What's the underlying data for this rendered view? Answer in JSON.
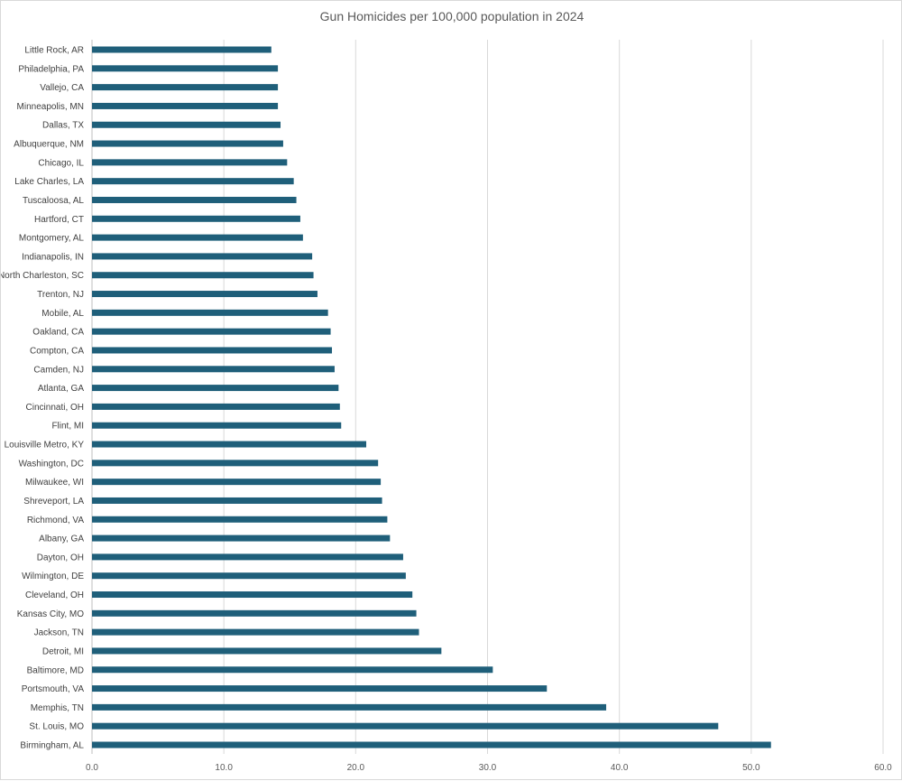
{
  "chart_data": {
    "type": "bar",
    "orientation": "horizontal",
    "title": "Gun Homicides per 100,000 population in 2024",
    "xlabel": "",
    "ylabel": "",
    "xlim": [
      0,
      60
    ],
    "xticks": [
      "0.0",
      "10.0",
      "20.0",
      "30.0",
      "40.0",
      "50.0",
      "60.0"
    ],
    "grid": true,
    "bar_color": "#1f5f7a",
    "categories": [
      "Little Rock, AR",
      "Philadelphia, PA",
      "Vallejo, CA",
      "Minneapolis, MN",
      "Dallas, TX",
      "Albuquerque, NM",
      "Chicago, IL",
      "Lake Charles, LA",
      "Tuscaloosa, AL",
      "Hartford, CT",
      "Montgomery, AL",
      "Indianapolis, IN",
      "North Charleston, SC",
      "Trenton, NJ",
      "Mobile, AL",
      "Oakland, CA",
      "Compton, CA",
      "Camden, NJ",
      "Atlanta, GA",
      "Cincinnati, OH",
      "Flint, MI",
      "Louisville Metro, KY",
      "Washington, DC",
      "Milwaukee, WI",
      "Shreveport, LA",
      "Richmond, VA",
      "Albany, GA",
      "Dayton, OH",
      "Wilmington, DE",
      "Cleveland, OH",
      "Kansas City, MO",
      "Jackson, TN",
      "Detroit, MI",
      "Baltimore, MD",
      "Portsmouth, VA",
      "Memphis, TN",
      "St. Louis, MO",
      "Birmingham, AL"
    ],
    "values": [
      13.6,
      14.1,
      14.1,
      14.1,
      14.3,
      14.5,
      14.8,
      15.3,
      15.5,
      15.8,
      16.0,
      16.7,
      16.8,
      17.1,
      17.9,
      18.1,
      18.2,
      18.4,
      18.7,
      18.8,
      18.9,
      20.8,
      21.7,
      21.9,
      22.0,
      22.4,
      22.6,
      23.6,
      23.8,
      24.3,
      24.6,
      24.8,
      26.5,
      30.4,
      34.5,
      39.0,
      47.5,
      51.5
    ]
  }
}
